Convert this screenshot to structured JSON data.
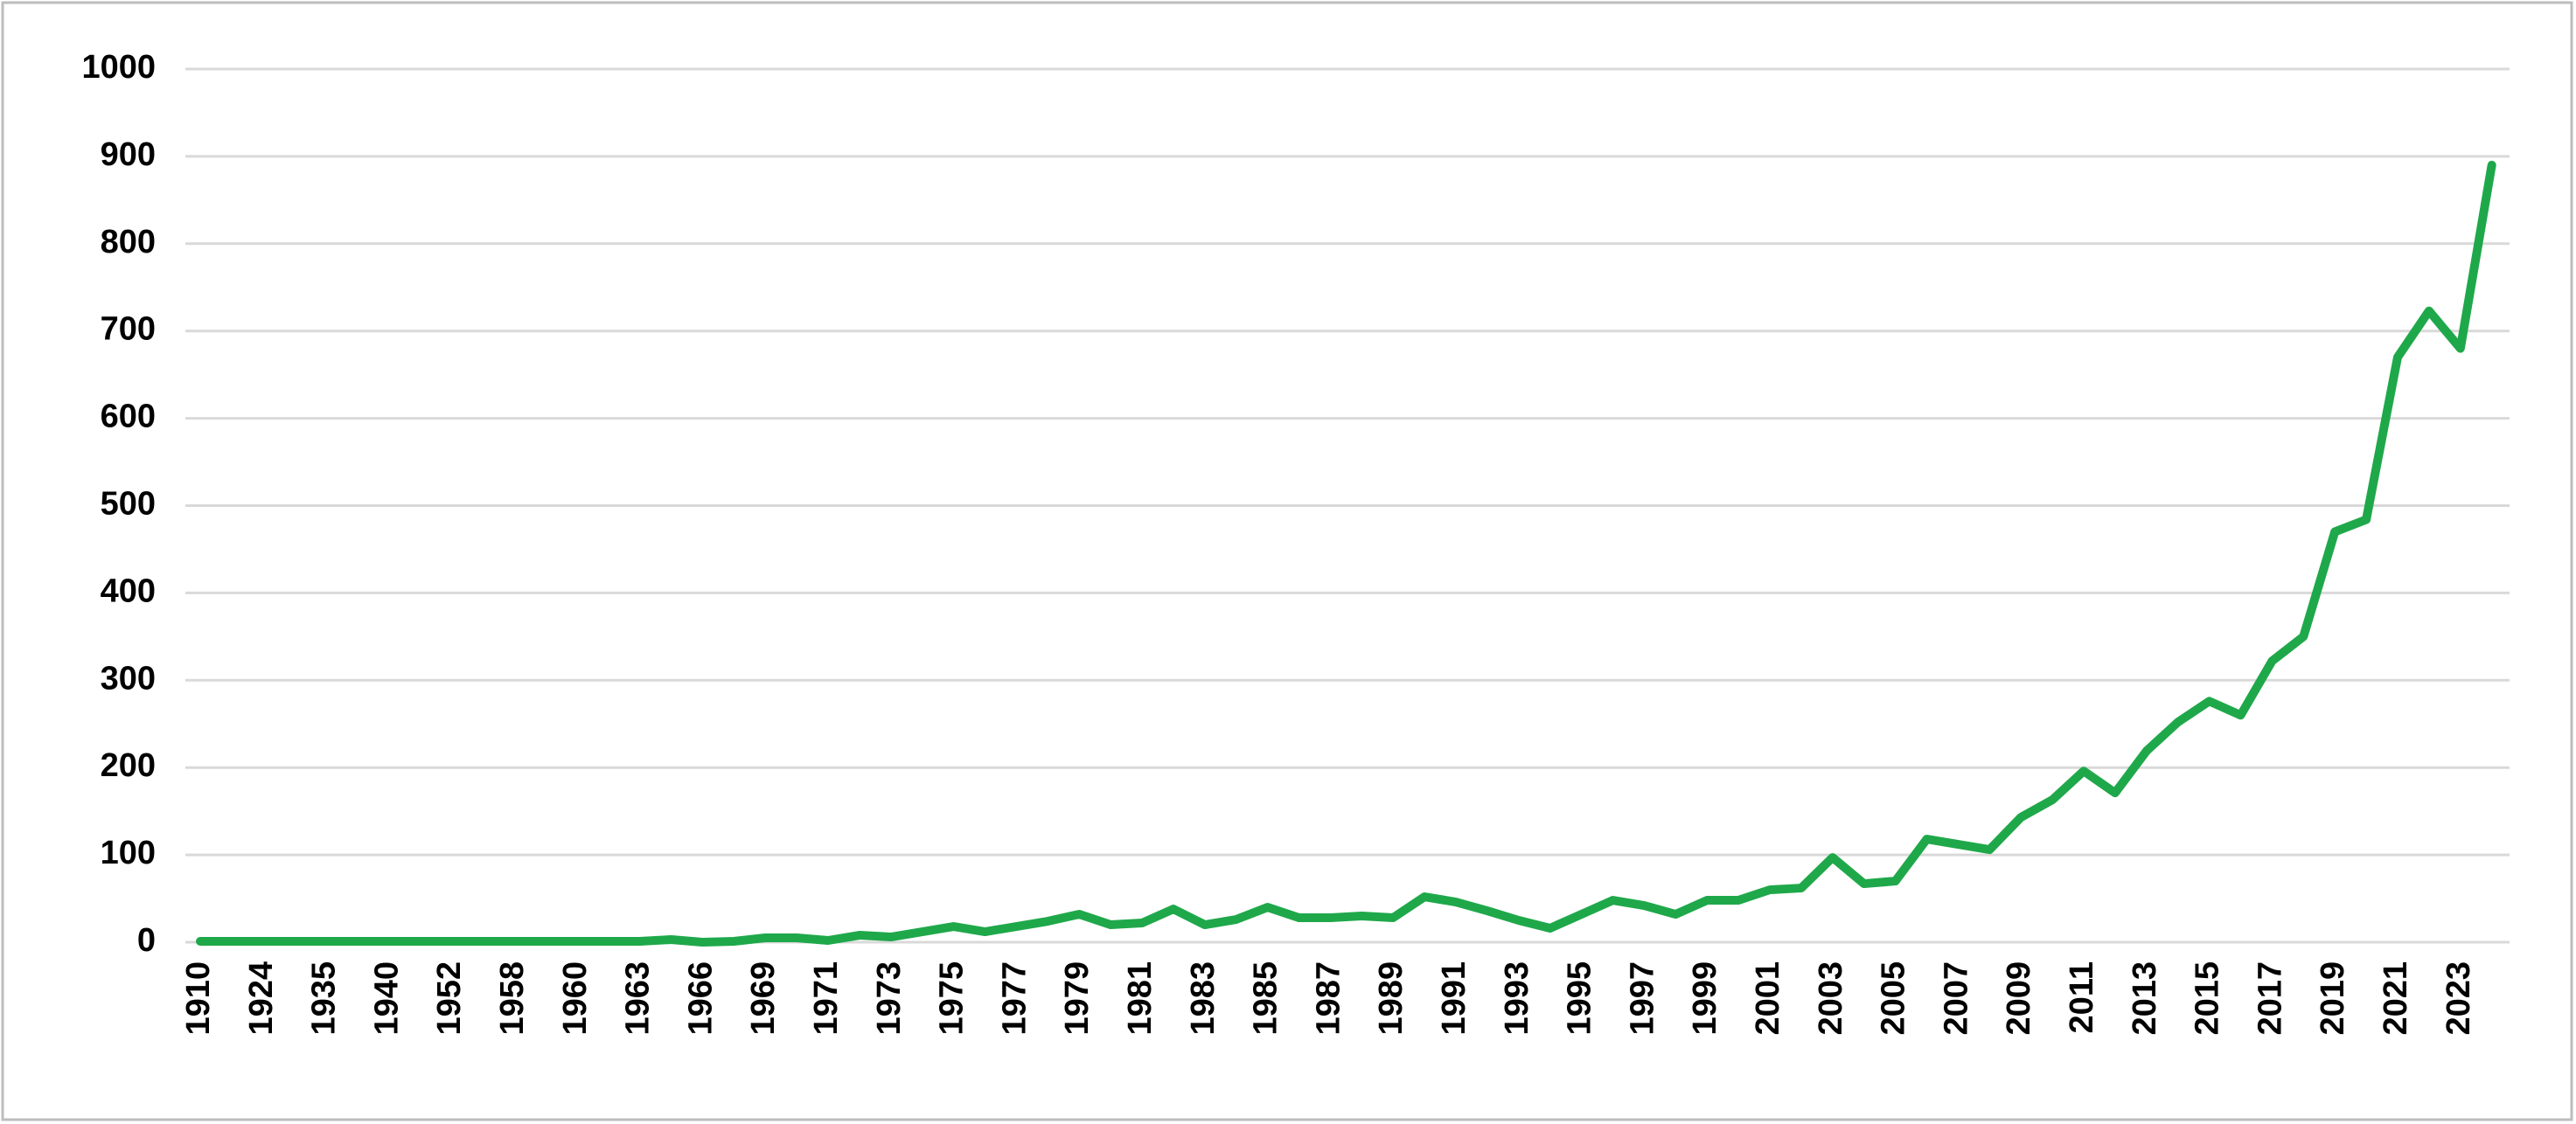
{
  "chart_data": {
    "type": "line",
    "categories": [
      "1910",
      null,
      "1924",
      null,
      "1935",
      null,
      "1940",
      null,
      "1952",
      null,
      "1958",
      null,
      "1960",
      null,
      "1963",
      null,
      "1966",
      null,
      "1969",
      null,
      "1971",
      null,
      "1973",
      null,
      "1975",
      null,
      "1977",
      null,
      "1979",
      null,
      "1981",
      null,
      "1983",
      null,
      "1985",
      null,
      "1987",
      null,
      "1989",
      null,
      "1991",
      null,
      "1993",
      null,
      "1995",
      null,
      "1997",
      null,
      "1999",
      null,
      "2001",
      null,
      "2003",
      null,
      "2005",
      null,
      "2007",
      null,
      "2009",
      null,
      "2011",
      null,
      "2013",
      null,
      "2015",
      null,
      "2017",
      null,
      "2019",
      null,
      "2021",
      null,
      "2023",
      null
    ],
    "series": [
      {
        "color": "#1fa84a",
        "values": [
          1,
          1,
          1,
          1,
          1,
          1,
          1,
          1,
          1,
          1,
          1,
          1,
          1,
          1,
          1,
          3,
          0,
          1,
          5,
          5,
          2,
          8,
          6,
          12,
          18,
          12,
          18,
          24,
          32,
          20,
          22,
          38,
          20,
          26,
          40,
          28,
          28,
          30,
          28,
          52,
          46,
          36,
          25,
          16,
          32,
          48,
          42,
          32,
          48,
          48,
          60,
          62,
          97,
          67,
          70,
          118,
          112,
          106,
          143,
          163,
          196,
          171,
          219,
          252,
          276,
          260,
          322,
          350,
          470,
          484,
          670,
          723,
          680,
          890
        ]
      }
    ],
    "ylim": [
      0,
      1000
    ],
    "yticks": [
      0,
      100,
      200,
      300,
      400,
      500,
      600,
      700,
      800,
      900,
      1000
    ],
    "grid": true
  }
}
